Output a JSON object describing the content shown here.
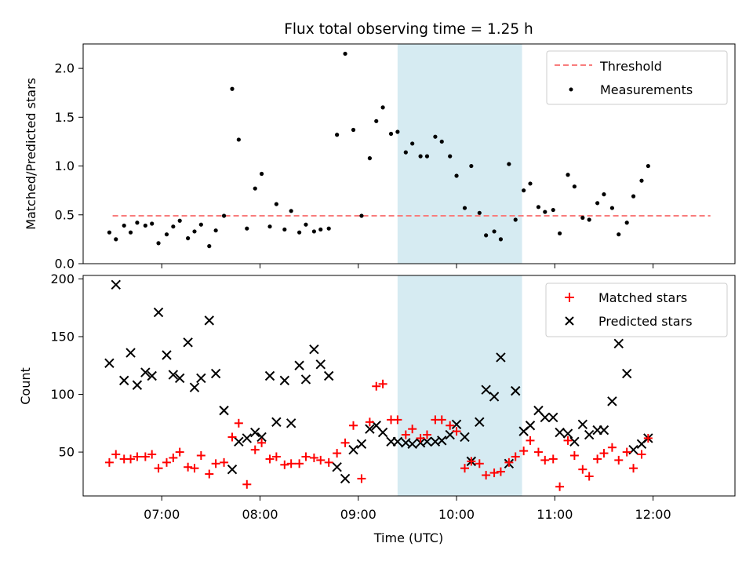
{
  "title": "Flux total observing time = 1.25 h",
  "colors": {
    "threshold": "#f87d7d",
    "measurements": "#000000",
    "matched": "#ff0000",
    "predicted": "#000000",
    "highlight": "#add8e6"
  },
  "chart_data": [
    {
      "type": "scatter",
      "panel": "top",
      "xlabel": "",
      "ylabel": "Matched/Predicted stars",
      "xlim": [
        "06:12",
        "12:50"
      ],
      "ylim": [
        0,
        2.25
      ],
      "yticks": [
        "0.0",
        "0.5",
        "1.0",
        "1.5",
        "2.0"
      ],
      "highlight_span": [
        "09:24",
        "10:40"
      ],
      "legend": {
        "position": "top-right",
        "entries": [
          "Threshold",
          "Measurements"
        ]
      },
      "threshold": {
        "name": "Threshold",
        "value": 0.49,
        "x_start": "06:30",
        "x_end": "12:35"
      },
      "series": [
        {
          "name": "Measurements",
          "points": [
            [
              "06:28",
              0.32
            ],
            [
              "06:32",
              0.25
            ],
            [
              "06:37",
              0.39
            ],
            [
              "06:41",
              0.32
            ],
            [
              "06:45",
              0.42
            ],
            [
              "06:50",
              0.39
            ],
            [
              "06:54",
              0.41
            ],
            [
              "06:58",
              0.21
            ],
            [
              "07:03",
              0.3
            ],
            [
              "07:07",
              0.38
            ],
            [
              "07:11",
              0.44
            ],
            [
              "07:16",
              0.26
            ],
            [
              "07:20",
              0.33
            ],
            [
              "07:24",
              0.4
            ],
            [
              "07:29",
              0.18
            ],
            [
              "07:33",
              0.34
            ],
            [
              "07:38",
              0.49
            ],
            [
              "07:43",
              1.79
            ],
            [
              "07:47",
              1.27
            ],
            [
              "07:52",
              0.36
            ],
            [
              "07:57",
              0.77
            ],
            [
              "08:01",
              0.92
            ],
            [
              "08:06",
              0.38
            ],
            [
              "08:10",
              0.61
            ],
            [
              "08:15",
              0.35
            ],
            [
              "08:19",
              0.54
            ],
            [
              "08:24",
              0.32
            ],
            [
              "08:28",
              0.4
            ],
            [
              "08:33",
              0.33
            ],
            [
              "08:37",
              0.35
            ],
            [
              "08:42",
              0.36
            ],
            [
              "08:47",
              1.32
            ],
            [
              "08:52",
              2.15
            ],
            [
              "08:57",
              1.37
            ],
            [
              "09:02",
              0.49
            ],
            [
              "09:07",
              1.08
            ],
            [
              "09:11",
              1.46
            ],
            [
              "09:15",
              1.6
            ],
            [
              "09:20",
              1.33
            ],
            [
              "09:24",
              1.35
            ],
            [
              "09:29",
              1.14
            ],
            [
              "09:33",
              1.23
            ],
            [
              "09:38",
              1.1
            ],
            [
              "09:42",
              1.1
            ],
            [
              "09:47",
              1.3
            ],
            [
              "09:51",
              1.25
            ],
            [
              "09:56",
              1.1
            ],
            [
              "10:00",
              0.9
            ],
            [
              "10:05",
              0.57
            ],
            [
              "10:09",
              1.0
            ],
            [
              "10:14",
              0.52
            ],
            [
              "10:18",
              0.29
            ],
            [
              "10:23",
              0.33
            ],
            [
              "10:27",
              0.25
            ],
            [
              "10:32",
              1.02
            ],
            [
              "10:36",
              0.45
            ],
            [
              "10:41",
              0.75
            ],
            [
              "10:45",
              0.82
            ],
            [
              "10:50",
              0.58
            ],
            [
              "10:54",
              0.53
            ],
            [
              "10:59",
              0.55
            ],
            [
              "11:03",
              0.31
            ],
            [
              "11:08",
              0.91
            ],
            [
              "11:12",
              0.79
            ],
            [
              "11:17",
              0.47
            ],
            [
              "11:21",
              0.45
            ],
            [
              "11:26",
              0.62
            ],
            [
              "11:30",
              0.71
            ],
            [
              "11:35",
              0.57
            ],
            [
              "11:39",
              0.3
            ],
            [
              "11:44",
              0.42
            ],
            [
              "11:48",
              0.69
            ],
            [
              "11:53",
              0.85
            ],
            [
              "11:57",
              1.0
            ]
          ]
        }
      ]
    },
    {
      "type": "scatter",
      "panel": "bottom",
      "xlabel": "Time (UTC)",
      "ylabel": "Count",
      "xlim": [
        "06:12",
        "12:50"
      ],
      "ylim": [
        12,
        203
      ],
      "yticks": [
        "50",
        "100",
        "150",
        "200"
      ],
      "xticks": [
        "07:00",
        "08:00",
        "09:00",
        "10:00",
        "11:00",
        "12:00"
      ],
      "highlight_span": [
        "09:24",
        "10:40"
      ],
      "legend": {
        "position": "top-right",
        "entries": [
          "Matched stars",
          "Predicted stars"
        ]
      },
      "series": [
        {
          "name": "Matched stars",
          "points": [
            [
              "06:28",
              41
            ],
            [
              "06:32",
              48
            ],
            [
              "06:37",
              44
            ],
            [
              "06:41",
              44
            ],
            [
              "06:45",
              46
            ],
            [
              "06:50",
              46
            ],
            [
              "06:54",
              48
            ],
            [
              "06:58",
              36
            ],
            [
              "07:03",
              41
            ],
            [
              "07:07",
              45
            ],
            [
              "07:11",
              50
            ],
            [
              "07:16",
              37
            ],
            [
              "07:20",
              36
            ],
            [
              "07:24",
              47
            ],
            [
              "07:29",
              31
            ],
            [
              "07:33",
              40
            ],
            [
              "07:38",
              41
            ],
            [
              "07:43",
              63
            ],
            [
              "07:47",
              75
            ],
            [
              "07:52",
              22
            ],
            [
              "07:57",
              52
            ],
            [
              "08:01",
              58
            ],
            [
              "08:06",
              44
            ],
            [
              "08:10",
              46
            ],
            [
              "08:15",
              39
            ],
            [
              "08:19",
              40
            ],
            [
              "08:24",
              40
            ],
            [
              "08:28",
              46
            ],
            [
              "08:33",
              45
            ],
            [
              "08:37",
              43
            ],
            [
              "08:42",
              41
            ],
            [
              "08:47",
              49
            ],
            [
              "08:52",
              58
            ],
            [
              "08:57",
              73
            ],
            [
              "09:02",
              27
            ],
            [
              "09:07",
              76
            ],
            [
              "09:11",
              107
            ],
            [
              "09:15",
              109
            ],
            [
              "09:20",
              78
            ],
            [
              "09:24",
              78
            ],
            [
              "09:29",
              65
            ],
            [
              "09:33",
              70
            ],
            [
              "09:38",
              62
            ],
            [
              "09:42",
              65
            ],
            [
              "09:47",
              78
            ],
            [
              "09:51",
              78
            ],
            [
              "09:56",
              73
            ],
            [
              "10:00",
              68
            ],
            [
              "10:05",
              36
            ],
            [
              "10:09",
              42
            ],
            [
              "10:14",
              40
            ],
            [
              "10:18",
              30
            ],
            [
              "10:23",
              32
            ],
            [
              "10:27",
              33
            ],
            [
              "10:32",
              41
            ],
            [
              "10:36",
              46
            ],
            [
              "10:41",
              51
            ],
            [
              "10:45",
              60
            ],
            [
              "10:50",
              50
            ],
            [
              "10:54",
              43
            ],
            [
              "10:59",
              44
            ],
            [
              "11:03",
              20
            ],
            [
              "11:08",
              60
            ],
            [
              "11:12",
              47
            ],
            [
              "11:17",
              35
            ],
            [
              "11:21",
              29
            ],
            [
              "11:26",
              44
            ],
            [
              "11:30",
              49
            ],
            [
              "11:35",
              54
            ],
            [
              "11:39",
              43
            ],
            [
              "11:44",
              50
            ],
            [
              "11:48",
              36
            ],
            [
              "11:53",
              48
            ],
            [
              "11:57",
              62
            ]
          ]
        },
        {
          "name": "Predicted stars",
          "points": [
            [
              "06:28",
              127
            ],
            [
              "06:32",
              195
            ],
            [
              "06:37",
              112
            ],
            [
              "06:41",
              136
            ],
            [
              "06:45",
              108
            ],
            [
              "06:50",
              119
            ],
            [
              "06:54",
              116
            ],
            [
              "06:58",
              171
            ],
            [
              "07:03",
              134
            ],
            [
              "07:07",
              117
            ],
            [
              "07:11",
              114
            ],
            [
              "07:16",
              145
            ],
            [
              "07:20",
              106
            ],
            [
              "07:24",
              114
            ],
            [
              "07:29",
              164
            ],
            [
              "07:33",
              118
            ],
            [
              "07:38",
              86
            ],
            [
              "07:43",
              35
            ],
            [
              "07:47",
              59
            ],
            [
              "07:52",
              62
            ],
            [
              "07:57",
              67
            ],
            [
              "08:01",
              63
            ],
            [
              "08:06",
              116
            ],
            [
              "08:10",
              76
            ],
            [
              "08:15",
              112
            ],
            [
              "08:19",
              75
            ],
            [
              "08:24",
              125
            ],
            [
              "08:28",
              113
            ],
            [
              "08:33",
              139
            ],
            [
              "08:37",
              126
            ],
            [
              "08:42",
              116
            ],
            [
              "08:47",
              37
            ],
            [
              "08:52",
              27
            ],
            [
              "08:57",
              52
            ],
            [
              "09:02",
              57
            ],
            [
              "09:07",
              70
            ],
            [
              "09:11",
              73
            ],
            [
              "09:15",
              67
            ],
            [
              "09:20",
              59
            ],
            [
              "09:24",
              59
            ],
            [
              "09:29",
              58
            ],
            [
              "09:33",
              57
            ],
            [
              "09:38",
              58
            ],
            [
              "09:42",
              59
            ],
            [
              "09:47",
              59
            ],
            [
              "09:51",
              60
            ],
            [
              "09:56",
              65
            ],
            [
              "10:00",
              74
            ],
            [
              "10:05",
              63
            ],
            [
              "10:09",
              42
            ],
            [
              "10:14",
              76
            ],
            [
              "10:18",
              104
            ],
            [
              "10:23",
              98
            ],
            [
              "10:27",
              132
            ],
            [
              "10:32",
              40
            ],
            [
              "10:36",
              103
            ],
            [
              "10:41",
              68
            ],
            [
              "10:45",
              73
            ],
            [
              "10:50",
              86
            ],
            [
              "10:54",
              80
            ],
            [
              "10:59",
              80
            ],
            [
              "11:03",
              67
            ],
            [
              "11:08",
              66
            ],
            [
              "11:12",
              59
            ],
            [
              "11:17",
              74
            ],
            [
              "11:21",
              65
            ],
            [
              "11:26",
              69
            ],
            [
              "11:30",
              69
            ],
            [
              "11:35",
              94
            ],
            [
              "11:39",
              144
            ],
            [
              "11:44",
              118
            ],
            [
              "11:48",
              52
            ],
            [
              "11:53",
              57
            ],
            [
              "11:57",
              62
            ]
          ]
        }
      ]
    }
  ]
}
